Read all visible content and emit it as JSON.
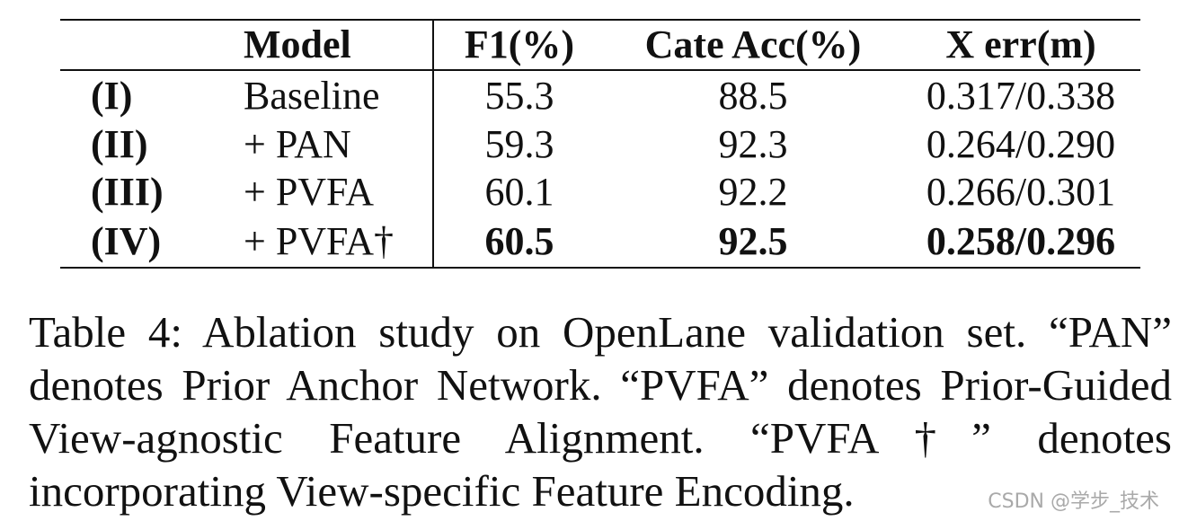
{
  "table": {
    "headers": [
      "",
      "Model",
      "F1(%)",
      "Cate Acc(%)",
      "X err(m)"
    ],
    "rows": [
      {
        "id": "(I)",
        "model": "Baseline",
        "f1": "55.3",
        "acc": "88.5",
        "err": "0.317/0.338",
        "bold": false
      },
      {
        "id": "(II)",
        "model": "+ PAN",
        "f1": "59.3",
        "acc": "92.3",
        "err": "0.264/0.290",
        "bold": false
      },
      {
        "id": "(III)",
        "model": "+ PVFA",
        "f1": "60.1",
        "acc": "92.2",
        "err": "0.266/0.301",
        "bold": false
      },
      {
        "id": "(IV)",
        "model": "+ PVFA†",
        "f1": "60.5",
        "acc": "92.5",
        "err": "0.258/0.296",
        "bold": true
      }
    ]
  },
  "caption": "Table 4: Ablation study on OpenLane validation set. “PAN” denotes Prior Anchor Network. “PVFA” denotes Prior-Guided View-agnostic Feature Alignment. “PVFA†” denotes incorporating View-specific Feature Encoding.",
  "watermark": "CSDN @学步_技术"
}
